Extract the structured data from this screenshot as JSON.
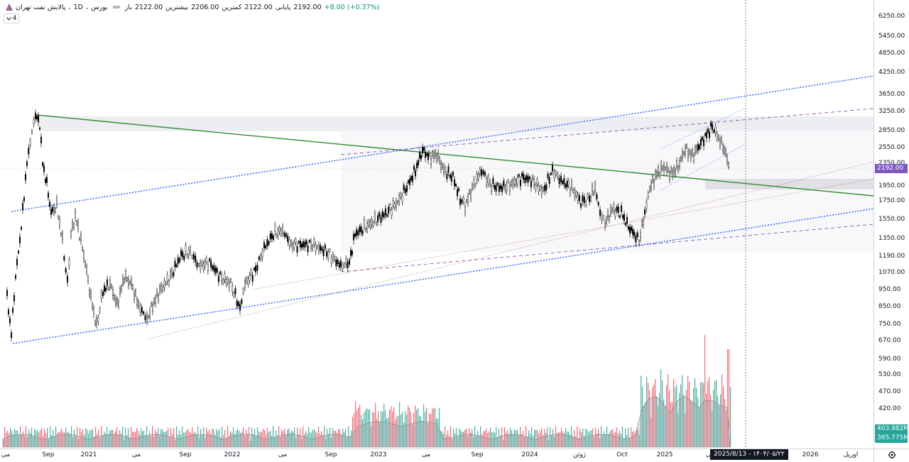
{
  "legend": {
    "symbol": "پالایش نفت تهران",
    "interval": "1D",
    "exchange": "بورس",
    "sep": "،",
    "open_label": "باز",
    "open": "2122.00",
    "high_label": "بیشترین",
    "high": "2206.00",
    "low_label": "کمترین",
    "low": "2122.00",
    "close_label": "پایانی",
    "close": "2192.00",
    "change": "+8.00 (+0.37%)"
  },
  "indicator_count": "4",
  "price_axis": {
    "ticks": [
      "6250.00",
      "5450.00",
      "4850.00",
      "4250.00",
      "3650.00",
      "3250.00",
      "2850.00",
      "2550.00",
      "2350.00",
      "1950.00",
      "1750.00",
      "1550.00",
      "1350.00",
      "1190.00",
      "1070.00",
      "950.00",
      "850.00",
      "750.00",
      "670.00",
      "590.00",
      "530.00",
      "470.00",
      "420.00"
    ],
    "last_price": "2192.00",
    "volume_1": "403.982M",
    "volume_2": "365.775M"
  },
  "time_axis": {
    "labels": [
      "می",
      "Sep",
      "2021",
      "می",
      "Sep",
      "2022",
      "می",
      "Sep",
      "2023",
      "می",
      "Sep",
      "2024",
      "ژوئن",
      "Oct",
      "2025",
      "می",
      "2026",
      "اوریل"
    ]
  },
  "crosshair_date": "2025/8/13 - ۱۴۰۴/۰۵/۲۲",
  "colors": {
    "up": "#089981",
    "down": "#f23645",
    "candle": "#000000",
    "trend_green": "#2e8b2e",
    "channel_blue": "#2962ff",
    "badge_price": "#7e57c2",
    "badge_volume": "#26a69a"
  },
  "icons": {
    "symbol": "tse-logo-icon",
    "settings": "gear-icon",
    "toggle": "chevron-down-icon"
  }
}
